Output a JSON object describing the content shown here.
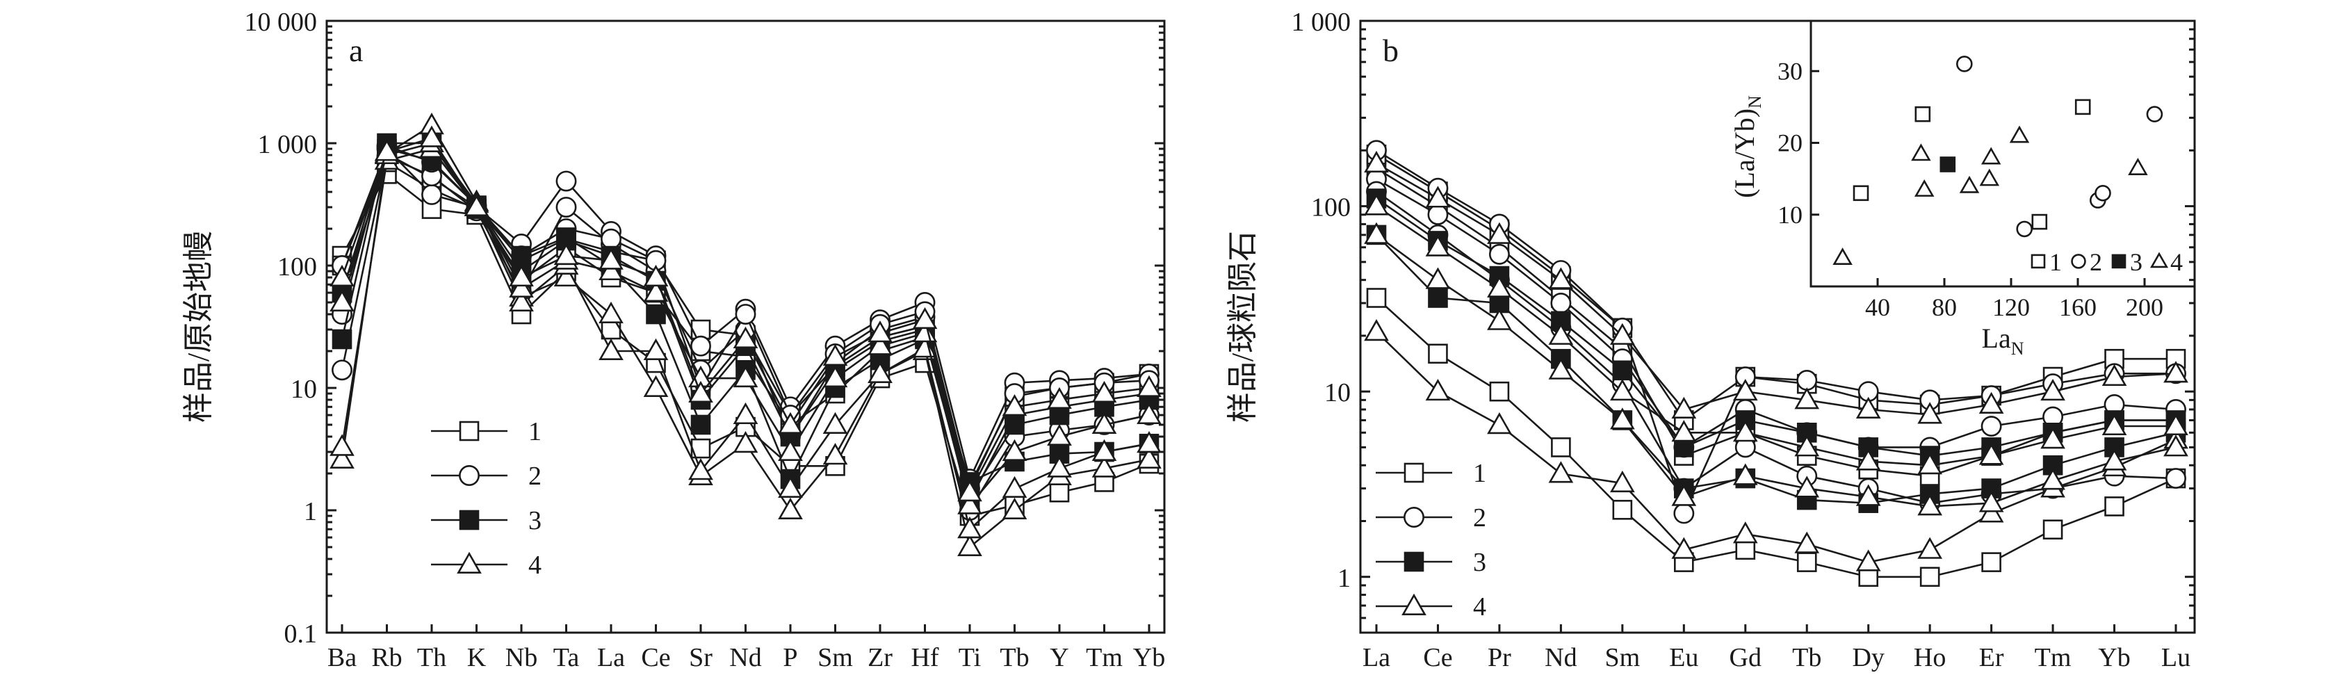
{
  "chart_data": [
    {
      "type": "line",
      "panel_label": "a",
      "ylabel": "样品/原始地幔",
      "yscale": "log",
      "ylim": [
        0.1,
        10000
      ],
      "yticks": [
        "0.1",
        "1",
        "10",
        "100",
        "1 000",
        "10 000"
      ],
      "categories": [
        "Ba",
        "Rb",
        "Th",
        "K",
        "Nb",
        "Ta",
        "La",
        "Ce",
        "Sr",
        "Nd",
        "P",
        "Sm",
        "Zr",
        "Hf",
        "Ti",
        "Tb",
        "Y",
        "Tm",
        "Yb"
      ],
      "legend": {
        "position": "lower-left",
        "entries": [
          "1",
          "2",
          "3",
          "4"
        ]
      },
      "series": [
        {
          "group": "1",
          "values": [
            120,
            560,
            290,
            260,
            40,
            90,
            30,
            16,
            3.2,
            4.8,
            2.3,
            2.3,
            12,
            16,
            0.9,
            1.1,
            1.4,
            1.7,
            2.4
          ]
        },
        {
          "group": "1",
          "values": [
            60,
            700,
            420,
            290,
            75,
            140,
            80,
            60,
            20,
            18,
            5,
            9,
            20,
            26,
            1.2,
            6,
            7,
            8,
            9
          ]
        },
        {
          "group": "1",
          "values": [
            100,
            820,
            520,
            300,
            110,
            165,
            130,
            110,
            30,
            27,
            6,
            15,
            26,
            32,
            1.6,
            8.5,
            10,
            11,
            13
          ]
        },
        {
          "group": "2",
          "values": [
            100,
            900,
            380,
            300,
            150,
            490,
            190,
            120,
            22,
            44,
            7,
            22,
            36,
            50,
            1.8,
            11,
            11.5,
            12,
            13
          ]
        },
        {
          "group": "2",
          "values": [
            14,
            780,
            540,
            280,
            60,
            300,
            150,
            90,
            14,
            30,
            4,
            16,
            30,
            38,
            1.0,
            4,
            4.5,
            5,
            6
          ]
        },
        {
          "group": "2",
          "values": [
            40,
            950,
            700,
            310,
            120,
            200,
            165,
            110,
            10,
            40,
            6,
            19,
            33,
            42,
            1.5,
            9,
            10,
            11,
            11.5
          ]
        },
        {
          "group": "3",
          "values": [
            25,
            1000,
            1000,
            290,
            120,
            170,
            100,
            40,
            5,
            14,
            1.8,
            10,
            17,
            25,
            1.7,
            2.5,
            2.9,
            3,
            3.5
          ]
        },
        {
          "group": "3",
          "values": [
            60,
            900,
            720,
            310,
            90,
            160,
            120,
            75,
            8,
            22,
            4,
            14,
            24,
            30,
            1.3,
            5,
            6,
            7,
            8
          ]
        },
        {
          "group": "4",
          "values": [
            2.6,
            820,
            1400,
            330,
            55,
            80,
            40,
            10,
            1.9,
            3.5,
            1.0,
            2.8,
            13,
            20,
            0.5,
            1.0,
            1.9,
            2.2,
            2.6
          ]
        },
        {
          "group": "4",
          "values": [
            3.3,
            720,
            900,
            300,
            50,
            100,
            20,
            20,
            2.1,
            6,
            1.5,
            5,
            13,
            21,
            0.7,
            1.5,
            2.2,
            3,
            3.5
          ]
        },
        {
          "group": "4",
          "values": [
            50,
            800,
            1000,
            320,
            65,
            110,
            90,
            60,
            12,
            12,
            3,
            12,
            22,
            28,
            1.1,
            3,
            4,
            5,
            6
          ]
        },
        {
          "group": "4",
          "values": [
            80,
            850,
            1100,
            300,
            80,
            120,
            110,
            80,
            9,
            25,
            5,
            18,
            28,
            36,
            1.4,
            7,
            8,
            9,
            10
          ]
        }
      ]
    },
    {
      "type": "line",
      "panel_label": "b",
      "ylabel": "样品/球粒陨石",
      "yscale": "log",
      "ylim": [
        0.5,
        1000
      ],
      "yticks": [
        "1",
        "10",
        "100",
        "1 000"
      ],
      "categories": [
        "La",
        "Ce",
        "Pr",
        "Nd",
        "Sm",
        "Eu",
        "Gd",
        "Tb",
        "Dy",
        "Ho",
        "Er",
        "Tm",
        "Yb",
        "Lu"
      ],
      "legend": {
        "position": "lower-left",
        "entries": [
          "1",
          "2",
          "3",
          "4"
        ]
      },
      "series": [
        {
          "group": "1",
          "values": [
            32,
            16,
            10,
            5,
            2.3,
            1.2,
            1.4,
            1.2,
            1.0,
            1.0,
            1.2,
            1.8,
            2.4,
            3.4
          ]
        },
        {
          "group": "1",
          "values": [
            160,
            100,
            60,
            32,
            17,
            4.5,
            6,
            4.5,
            3.8,
            3.5,
            4.5,
            6,
            7,
            7
          ]
        },
        {
          "group": "1",
          "values": [
            190,
            120,
            75,
            42,
            22,
            7,
            12,
            11,
            9,
            8.5,
            9.5,
            12,
            15,
            15
          ]
        },
        {
          "group": "2",
          "values": [
            200,
            125,
            80,
            45,
            22,
            2.2,
            12,
            11.5,
            10,
            9,
            9.5,
            11,
            12.5,
            12.5
          ]
        },
        {
          "group": "2",
          "values": [
            140,
            90,
            55,
            30,
            15,
            5,
            8,
            6,
            5,
            5,
            6.5,
            7.3,
            8.5,
            8
          ]
        },
        {
          "group": "2",
          "values": [
            120,
            70,
            40,
            22,
            11,
            3,
            5,
            3.5,
            3,
            2.5,
            2.8,
            3,
            3.5,
            3.4
          ]
        },
        {
          "group": "3",
          "values": [
            70,
            32,
            30,
            15,
            7,
            3,
            3.4,
            2.6,
            2.5,
            2.8,
            3,
            4,
            5,
            6
          ]
        },
        {
          "group": "3",
          "values": [
            110,
            65,
            42,
            24,
            13,
            5,
            7,
            6,
            5,
            4.5,
            5,
            6,
            7,
            7
          ]
        },
        {
          "group": "4",
          "values": [
            21,
            10,
            6.6,
            3.6,
            3.2,
            1.4,
            1.7,
            1.5,
            1.2,
            1.4,
            2.2,
            3,
            3.9,
            5.5
          ]
        },
        {
          "group": "4",
          "values": [
            70,
            40,
            24,
            13,
            7,
            2.7,
            3.5,
            3,
            2.7,
            2.4,
            2.5,
            3.3,
            4.2,
            5
          ]
        },
        {
          "group": "4",
          "values": [
            100,
            60,
            36,
            20,
            10,
            6,
            6,
            5,
            4.2,
            4,
            4.5,
            5.5,
            6.5,
            6.5
          ]
        },
        {
          "group": "4",
          "values": [
            170,
            110,
            70,
            40,
            20,
            8,
            10,
            9,
            8,
            7.5,
            8.5,
            10,
            12,
            12.5
          ]
        }
      ]
    },
    {
      "type": "scatter",
      "panel_label": "b-inset",
      "xlabel": "La",
      "xlabel_sub": "N",
      "ylabel": "(La/Yb)",
      "ylabel_sub": "N",
      "xlim": [
        0,
        230
      ],
      "ylim": [
        0,
        37
      ],
      "xticks": [
        40,
        80,
        120,
        160,
        200
      ],
      "yticks": [
        10,
        20,
        30
      ],
      "legend": {
        "position": "bottom-right",
        "entries": [
          "1",
          "2",
          "3",
          "4"
        ]
      },
      "series": [
        {
          "group": "1",
          "x": [
            30,
            67,
            137,
            163
          ],
          "y": [
            13,
            24,
            9,
            25
          ]
        },
        {
          "group": "2",
          "x": [
            92,
            128,
            172,
            175,
            206
          ],
          "y": [
            31,
            8,
            12,
            13,
            24
          ]
        },
        {
          "group": "3",
          "x": [
            82
          ],
          "y": [
            17
          ]
        },
        {
          "group": "4",
          "x": [
            19,
            66,
            68,
            95,
            107,
            108,
            125,
            196
          ],
          "y": [
            4,
            18.5,
            13.5,
            14,
            15,
            18,
            21,
            16.5
          ]
        }
      ]
    }
  ]
}
